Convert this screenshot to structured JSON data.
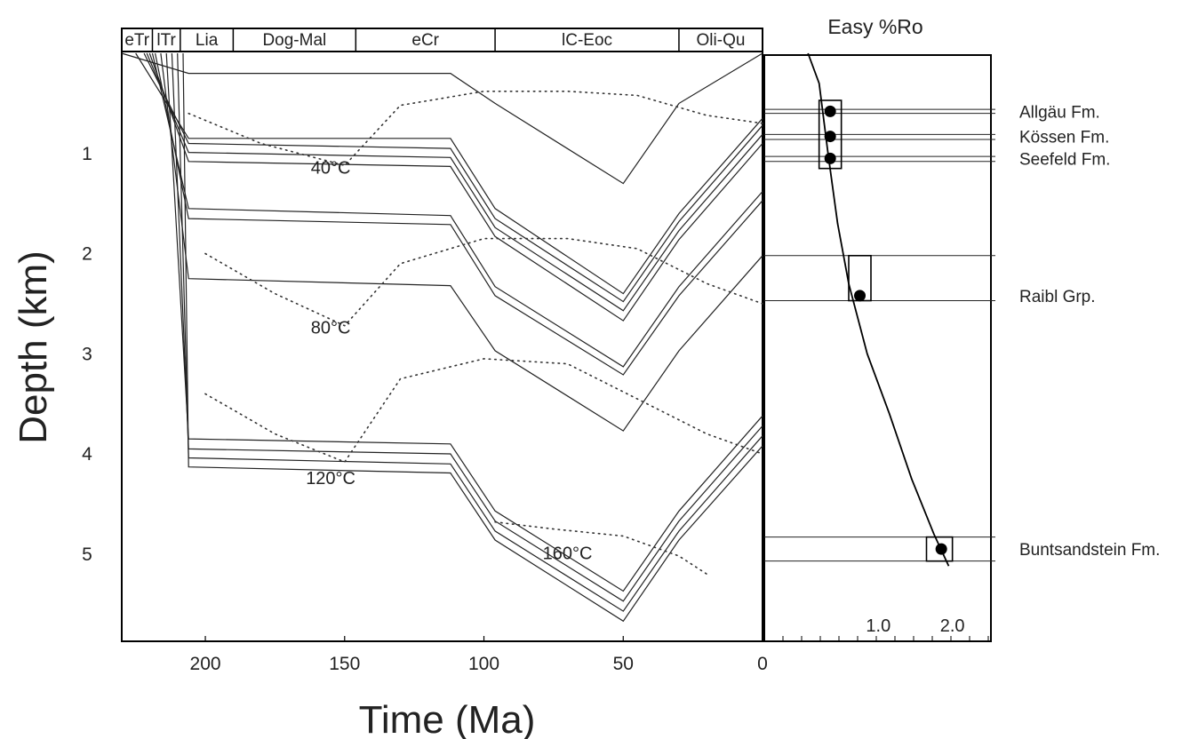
{
  "chart_data": [
    {
      "type": "line",
      "xlabel": "Time (Ma)",
      "ylabel": "Depth (km)",
      "xlim": [
        230,
        0
      ],
      "ylim": [
        0,
        5.8
      ],
      "x_ticks": [
        "200",
        "150",
        "100",
        "50",
        "0"
      ],
      "x_tick_values": [
        200,
        150,
        100,
        50,
        0
      ],
      "y_ticks": [
        "1",
        "2",
        "3",
        "4",
        "5"
      ],
      "y_tick_values": [
        1,
        2,
        3,
        4,
        5
      ],
      "grid": false,
      "periods": [
        {
          "label": "eTr",
          "from": 230,
          "to": 219
        },
        {
          "label": "lTr",
          "from": 219,
          "to": 209
        },
        {
          "label": "Lia",
          "from": 209,
          "to": 190
        },
        {
          "label": "Dog-Mal",
          "from": 190,
          "to": 146
        },
        {
          "label": "eCr",
          "from": 146,
          "to": 96
        },
        {
          "label": "lC-Eoc",
          "from": 96,
          "to": 30
        },
        {
          "label": "Oli-Qu",
          "from": 30,
          "to": 0
        }
      ],
      "burial_curves": [
        {
          "points": [
            [
              230,
              0
            ],
            [
              206,
              0.2
            ],
            [
              112,
              0.2
            ],
            [
              96,
              0.5
            ],
            [
              50,
              1.3
            ],
            [
              30,
              0.5
            ],
            [
              0,
              0
            ]
          ]
        },
        {
          "points": [
            [
              225,
              0
            ],
            [
              206,
              0.85
            ],
            [
              112,
              0.85
            ],
            [
              96,
              1.55
            ],
            [
              50,
              2.4
            ],
            [
              30,
              1.6
            ],
            [
              0,
              0.65
            ]
          ]
        },
        {
          "points": [
            [
              222,
              0
            ],
            [
              206,
              0.9
            ],
            [
              112,
              0.95
            ],
            [
              96,
              1.65
            ],
            [
              50,
              2.48
            ],
            [
              30,
              1.68
            ],
            [
              0,
              0.72
            ]
          ]
        },
        {
          "points": [
            [
              221,
              0
            ],
            [
              206,
              0.99
            ],
            [
              112,
              1.04
            ],
            [
              96,
              1.74
            ],
            [
              50,
              2.57
            ],
            [
              30,
              1.77
            ],
            [
              0,
              0.81
            ]
          ]
        },
        {
          "points": [
            [
              220,
              0
            ],
            [
              206,
              1.08
            ],
            [
              112,
              1.13
            ],
            [
              96,
              1.83
            ],
            [
              50,
              2.67
            ],
            [
              30,
              1.86
            ],
            [
              0,
              0.9
            ]
          ]
        },
        {
          "points": [
            [
              219,
              0
            ],
            [
              206,
              1.55
            ],
            [
              112,
              1.62
            ],
            [
              96,
              2.33
            ],
            [
              50,
              3.13
            ],
            [
              30,
              2.33
            ],
            [
              0,
              1.38
            ]
          ]
        },
        {
          "points": [
            [
              218,
              0
            ],
            [
              206,
              1.65
            ],
            [
              112,
              1.71
            ],
            [
              96,
              2.42
            ],
            [
              50,
              3.21
            ],
            [
              30,
              2.42
            ],
            [
              0,
              1.47
            ]
          ]
        },
        {
          "points": [
            [
              216,
              0
            ],
            [
              206,
              2.25
            ],
            [
              112,
              2.32
            ],
            [
              96,
              2.97
            ],
            [
              50,
              3.77
            ],
            [
              30,
              2.97
            ],
            [
              0,
              2.02
            ]
          ]
        },
        {
          "points": [
            [
              214,
              0
            ],
            [
              206,
              3.85
            ],
            [
              112,
              3.9
            ],
            [
              96,
              4.57
            ],
            [
              50,
              5.37
            ],
            [
              30,
              4.57
            ],
            [
              0,
              3.62
            ]
          ]
        },
        {
          "points": [
            [
              212,
              0
            ],
            [
              206,
              3.95
            ],
            [
              112,
              4.0
            ],
            [
              96,
              4.67
            ],
            [
              50,
              5.47
            ],
            [
              30,
              4.67
            ],
            [
              0,
              3.72
            ]
          ]
        },
        {
          "points": [
            [
              210,
              0
            ],
            [
              206,
              4.04
            ],
            [
              112,
              4.1
            ],
            [
              96,
              4.77
            ],
            [
              50,
              5.57
            ],
            [
              30,
              4.77
            ],
            [
              0,
              3.82
            ]
          ]
        },
        {
          "points": [
            [
              208,
              0
            ],
            [
              206,
              4.13
            ],
            [
              112,
              4.19
            ],
            [
              96,
              4.86
            ],
            [
              50,
              5.67
            ],
            [
              30,
              4.86
            ],
            [
              0,
              3.92
            ]
          ]
        }
      ],
      "isotherms": [
        {
          "label": "40°C",
          "label_at": [
            155,
            1.2
          ],
          "points": [
            [
              206,
              0.6
            ],
            [
              180,
              0.9
            ],
            [
              150,
              1.12
            ],
            [
              130,
              0.52
            ],
            [
              100,
              0.38
            ],
            [
              70,
              0.38
            ],
            [
              45,
              0.42
            ],
            [
              20,
              0.62
            ],
            [
              0,
              0.7
            ]
          ]
        },
        {
          "label": "80°C",
          "label_at": [
            155,
            2.8
          ],
          "points": [
            [
              200,
              2.0
            ],
            [
              175,
              2.4
            ],
            [
              150,
              2.72
            ],
            [
              130,
              2.1
            ],
            [
              100,
              1.85
            ],
            [
              70,
              1.85
            ],
            [
              45,
              1.95
            ],
            [
              20,
              2.3
            ],
            [
              0,
              2.5
            ]
          ]
        },
        {
          "label": "120°C",
          "label_at": [
            155,
            4.3
          ],
          "points": [
            [
              200,
              3.4
            ],
            [
              175,
              3.8
            ],
            [
              150,
              4.08
            ],
            [
              130,
              3.25
            ],
            [
              100,
              3.05
            ],
            [
              70,
              3.1
            ],
            [
              45,
              3.45
            ],
            [
              20,
              3.8
            ],
            [
              0,
              4.0
            ]
          ]
        },
        {
          "label": "160°C",
          "label_at": [
            70,
            5.05
          ],
          "points": [
            [
              96,
              4.68
            ],
            [
              75,
              4.75
            ],
            [
              50,
              4.82
            ],
            [
              30,
              5.02
            ],
            [
              20,
              5.2
            ]
          ]
        }
      ]
    },
    {
      "type": "scatter",
      "title": "Easy %Ro",
      "x_ticks": [
        "1.0",
        "2.0"
      ],
      "x_tick_values": [
        1.0,
        2.0
      ],
      "xlim": [
        0,
        3.0
      ],
      "ylim": [
        0,
        5.8
      ],
      "grid": false,
      "measurements": [
        {
          "formation": "Allgäu Fm.",
          "x": 0.35,
          "depth": 0.58,
          "label": "Allgäu Fm."
        },
        {
          "formation": "Kössen Fm.",
          "x": 0.35,
          "depth": 0.83,
          "label": "Kössen Fm."
        },
        {
          "formation": "Seefeld Fm.",
          "x": 0.35,
          "depth": 1.05,
          "label": "Seefeld Fm."
        },
        {
          "formation": "Raibl Grp.",
          "x": 0.75,
          "depth": 2.42,
          "label": "Raibl Grp."
        },
        {
          "formation": "Buntsandstein Fm.",
          "x": 1.85,
          "depth": 4.95,
          "label": "Buntsandstein Fm."
        }
      ],
      "boxes": [
        {
          "x0": 0.2,
          "x1": 0.5,
          "d0": 0.47,
          "d1": 1.15
        },
        {
          "x0": 0.6,
          "x1": 0.9,
          "d0": 2.02,
          "d1": 2.47
        },
        {
          "x0": 1.65,
          "x1": 2.0,
          "d0": 4.83,
          "d1": 5.07
        }
      ],
      "horizon_depths": [
        0.56,
        0.6,
        0.81,
        0.86,
        1.03,
        1.08,
        2.02,
        2.47,
        4.83,
        5.07
      ],
      "ro_curve": [
        [
          0.05,
          0.0
        ],
        [
          0.2,
          0.3
        ],
        [
          0.32,
          1.0
        ],
        [
          0.45,
          1.7
        ],
        [
          0.6,
          2.3
        ],
        [
          0.85,
          3.0
        ],
        [
          1.15,
          3.6
        ],
        [
          1.45,
          4.25
        ],
        [
          1.75,
          4.8
        ],
        [
          1.95,
          5.12
        ]
      ]
    }
  ]
}
